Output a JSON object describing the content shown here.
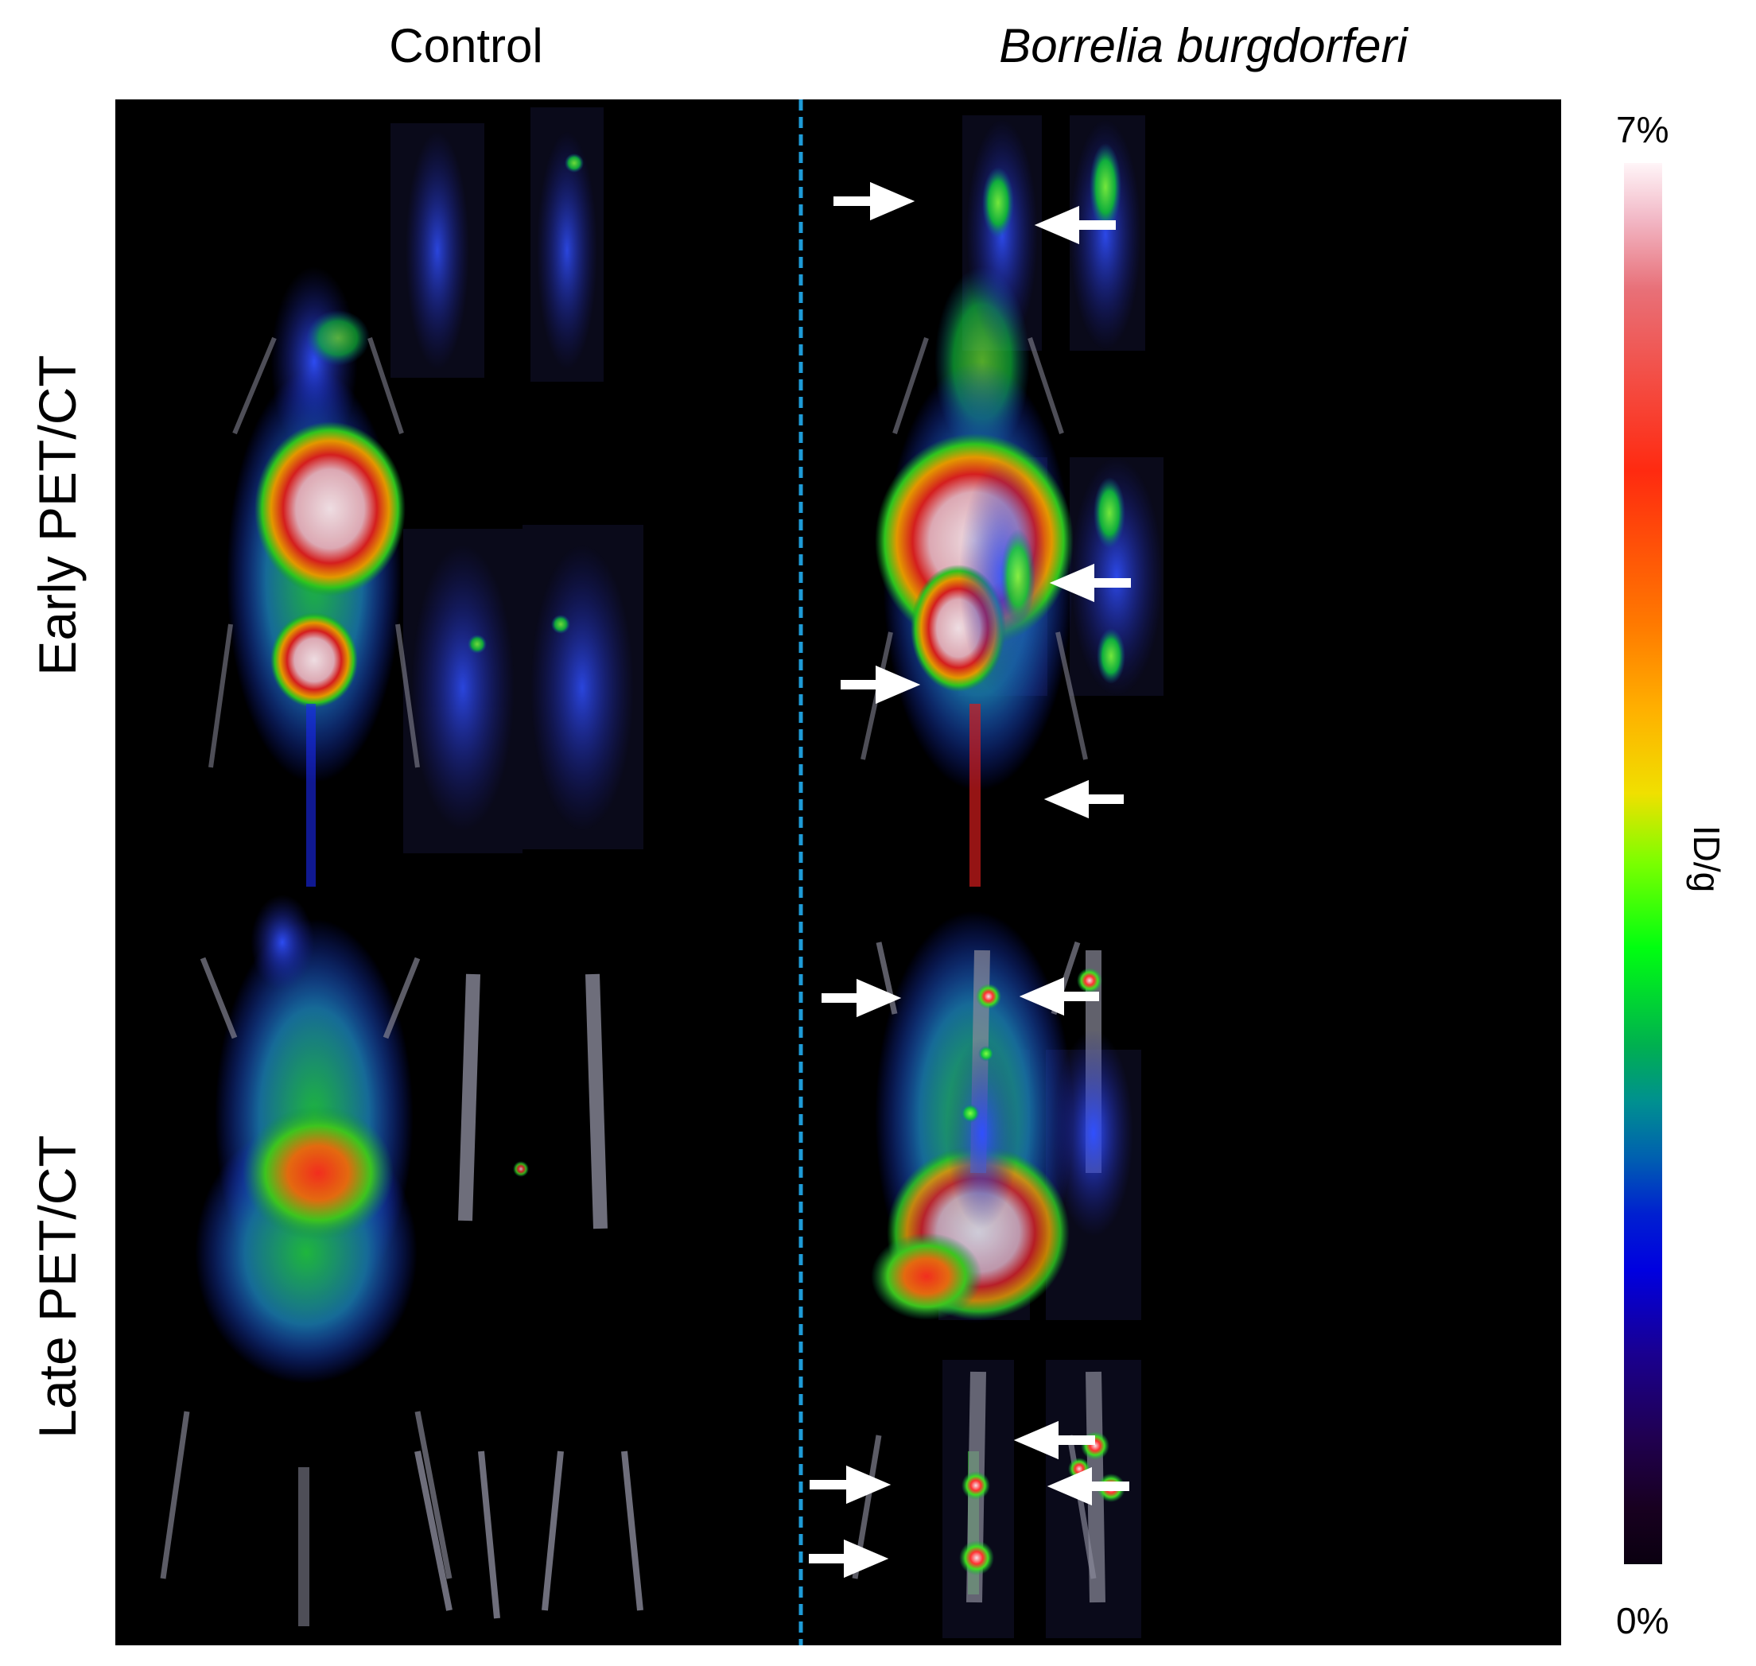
{
  "columns": {
    "control": "Control",
    "infected": "Borrelia burgdorferi"
  },
  "rows": {
    "early": "Early PET/CT",
    "late": "Late PET/CT"
  },
  "colorbar": {
    "max_label": "7%",
    "min_label": "0%",
    "axis_label": "ID/g"
  },
  "colors": {
    "divider": "#1e9bd7",
    "arrow": "#ffffff",
    "panel_background": "#000000",
    "skeleton": "#8a8a9a",
    "low_uptake": "#1a2cff",
    "mid_uptake": "#19e619",
    "high_uptake": "#e02020",
    "max_uptake": "#f5d6de"
  },
  "icons": [
    "arrow-left-icon",
    "arrow-right-icon"
  ]
}
